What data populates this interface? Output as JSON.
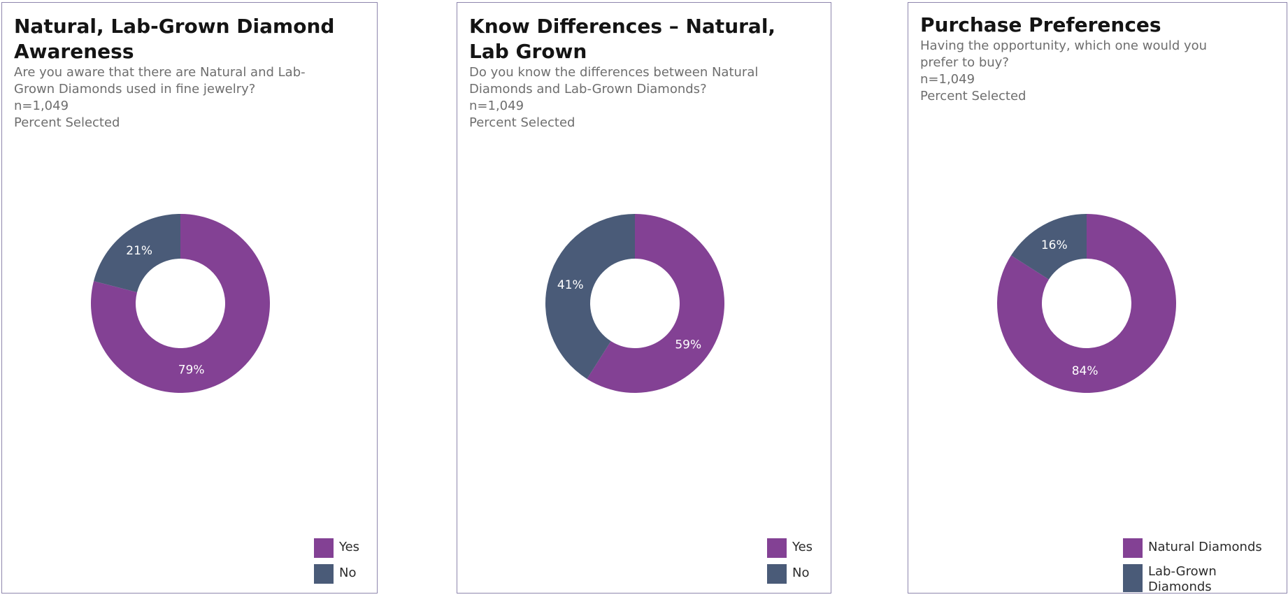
{
  "colors": {
    "yes": "#834194",
    "no": "#4a5b78",
    "border": "#8e86ad"
  },
  "chart_data": [
    {
      "type": "pie",
      "title": "Natural, Lab-Grown Diamond Awareness",
      "question": "Are you aware that there are Natural and Lab-Grown Diamonds used in fine jewelry?",
      "sample": "n=1,049",
      "measure": "Percent Selected",
      "slices": [
        {
          "name": "Yes",
          "value": 79,
          "label": "79%",
          "color": "#834194"
        },
        {
          "name": "No",
          "value": 21,
          "label": "21%",
          "color": "#4a5b78"
        }
      ],
      "legend": [
        "Yes",
        "No"
      ],
      "legend_position": "bottom-right"
    },
    {
      "type": "pie",
      "title": "Know Differences – Natural, Lab Grown",
      "question": "Do you know the differences between Natural Diamonds and Lab-Grown Diamonds?",
      "sample": "n=1,049",
      "measure": "Percent Selected",
      "slices": [
        {
          "name": "Yes",
          "value": 59,
          "label": "59%",
          "color": "#834194"
        },
        {
          "name": "No",
          "value": 41,
          "label": "41%",
          "color": "#4a5b78"
        }
      ],
      "legend": [
        "Yes",
        "No"
      ],
      "legend_position": "bottom-right"
    },
    {
      "type": "pie",
      "title": "Purchase Preferences",
      "question": "Having the opportunity, which one would you prefer to buy?",
      "sample": "n=1,049",
      "measure": "Percent Selected",
      "slices": [
        {
          "name": "Natural Diamonds",
          "value": 84,
          "label": "84%",
          "color": "#834194"
        },
        {
          "name": "Lab-Grown Diamonds",
          "value": 16,
          "label": "16%",
          "color": "#4a5b78"
        }
      ],
      "legend": [
        "Natural Diamonds",
        "Lab-Grown Diamonds"
      ],
      "legend_position": "bottom-right"
    }
  ]
}
